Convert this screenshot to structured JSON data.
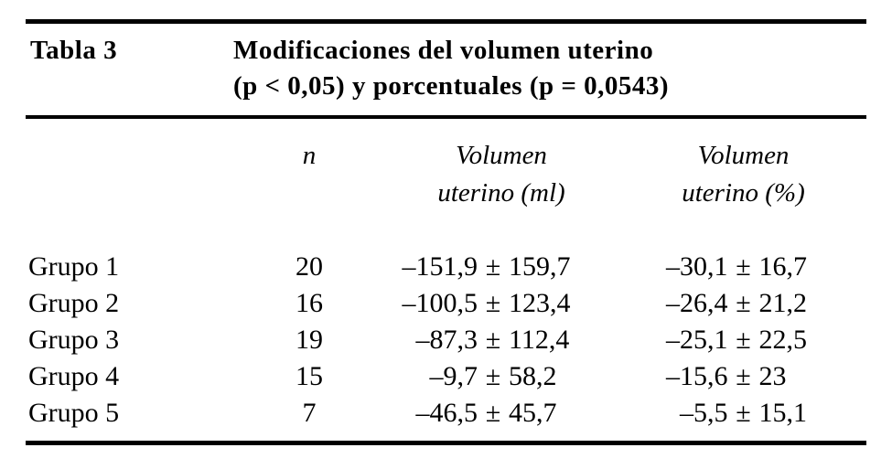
{
  "page": {
    "background_color": "#ffffff",
    "ink_color": "#000000"
  },
  "table": {
    "label": "Tabla 3",
    "title_line1": "Modificaciones del volumen uterino",
    "title_line2": "(p < 0,05) y porcentuales (p = 0,0543)",
    "pm_sign": "±",
    "col_headers": {
      "n": "n",
      "vol_ml": [
        "Volumen",
        "uterino (ml)"
      ],
      "vol_pct": [
        "Volumen",
        "uterino (%)"
      ]
    },
    "rows": [
      {
        "group": "Grupo 1",
        "n": "20",
        "ml_mean": "–151,9",
        "ml_sd": "159,7",
        "pct_mean": "–30,1",
        "pct_sd": "16,7"
      },
      {
        "group": "Grupo 2",
        "n": "16",
        "ml_mean": "–100,5",
        "ml_sd": "123,4",
        "pct_mean": "–26,4",
        "pct_sd": "21,2"
      },
      {
        "group": "Grupo 3",
        "n": "19",
        "ml_mean": "–87,3",
        "ml_sd": "112,4",
        "pct_mean": "–25,1",
        "pct_sd": "22,5"
      },
      {
        "group": "Grupo 4",
        "n": "15",
        "ml_mean": "–9,7",
        "ml_sd": "58,2",
        "pct_mean": "–15,6",
        "pct_sd": "23"
      },
      {
        "group": "Grupo 5",
        "n": "7",
        "ml_mean": "–46,5",
        "ml_sd": "45,7",
        "pct_mean": "–5,5",
        "pct_sd": "15,1"
      }
    ]
  }
}
